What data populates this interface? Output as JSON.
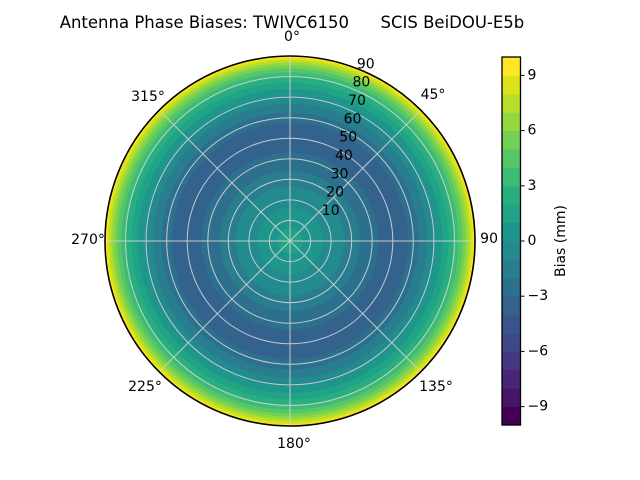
{
  "title": "Antenna Phase Biases: TWIVC6150      SCIS BeiDOU-E5b",
  "polar": {
    "angular_labels": [
      "0°",
      "45°",
      "90",
      "135°",
      "180°",
      "225°",
      "270°",
      "315°"
    ],
    "radial_labels": [
      "10",
      "20",
      "30",
      "40",
      "50",
      "60",
      "70",
      "80",
      "90"
    ]
  },
  "colorbar": {
    "label": "Bias (mm)",
    "ticks": [
      "9",
      "6",
      "3",
      "0",
      "−3",
      "−6",
      "−9"
    ],
    "band_colors_bottom_to_top": [
      "#440154",
      "#481467",
      "#482576",
      "#453781",
      "#3f4889",
      "#39568c",
      "#33638d",
      "#2d708e",
      "#287d8e",
      "#238a8d",
      "#1f968b",
      "#20a386",
      "#29af7f",
      "#3cbc74",
      "#56c667",
      "#74d055",
      "#94d840",
      "#b8de29",
      "#dce318",
      "#fde725"
    ]
  },
  "chart_data": {
    "type": "heatmap",
    "subtype": "polar_filled_contour",
    "title": "Antenna Phase Biases: TWIVC6150      SCIS BeiDOU-E5b",
    "antenna": "TWIVC6150",
    "series_label": "SCIS BeiDOU-E5b",
    "colormap": "viridis",
    "colorbar_label": "Bias (mm)",
    "colorbar_ticks": [
      9,
      6,
      3,
      0,
      -3,
      -6,
      -9
    ],
    "value_range_mm": [
      -10,
      10
    ],
    "contour_step_mm": 1,
    "azimuth_ticks_deg": [
      0,
      45,
      90,
      135,
      180,
      225,
      270,
      315
    ],
    "zenith_ticks_deg": [
      10,
      20,
      30,
      40,
      50,
      60,
      70,
      80,
      90
    ],
    "grid": true,
    "legend_position": "colorbar-right",
    "symmetry": "azimuthally symmetric rings (bias depends on zenith angle only)",
    "radial_profile": {
      "zenith_deg": [
        0,
        10,
        20,
        30,
        40,
        50,
        55,
        60,
        65,
        70,
        75,
        80,
        85,
        90
      ],
      "bias_mm": [
        1.5,
        0.5,
        -0.7,
        -1.8,
        -2.8,
        -3.3,
        -3.2,
        -2.5,
        -1.5,
        -0.3,
        1.2,
        3.0,
        5.8,
        9.7
      ]
    },
    "ring_bands": [
      {
        "to": 0.067,
        "color": "#20a386"
      },
      {
        "to": 0.178,
        "color": "#1f968b"
      },
      {
        "to": 0.294,
        "color": "#238a8d"
      },
      {
        "to": 0.378,
        "color": "#287d8e"
      },
      {
        "to": 0.478,
        "color": "#2d708e"
      },
      {
        "to": 0.639,
        "color": "#33638d"
      },
      {
        "to": 0.694,
        "color": "#2d708e"
      },
      {
        "to": 0.742,
        "color": "#287d8e"
      },
      {
        "to": 0.783,
        "color": "#238a8d"
      },
      {
        "to": 0.822,
        "color": "#1f968b"
      },
      {
        "to": 0.856,
        "color": "#20a386"
      },
      {
        "to": 0.889,
        "color": "#29af7f"
      },
      {
        "to": 0.911,
        "color": "#3cbc74"
      },
      {
        "to": 0.932,
        "color": "#56c667"
      },
      {
        "to": 0.949,
        "color": "#74d055"
      },
      {
        "to": 0.964,
        "color": "#94d840"
      },
      {
        "to": 0.978,
        "color": "#b8de29"
      },
      {
        "to": 0.99,
        "color": "#dce318"
      },
      {
        "to": 1.0,
        "color": "#fde725"
      }
    ]
  }
}
